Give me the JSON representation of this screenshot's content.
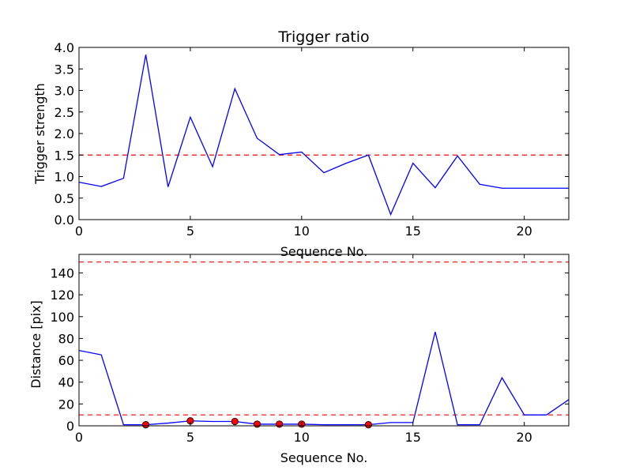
{
  "chart_data": [
    {
      "type": "line",
      "title": "Trigger ratio",
      "xlabel": "Sequence No.",
      "ylabel": "Trigger strength",
      "xlim": [
        0,
        22
      ],
      "ylim": [
        0,
        4.0
      ],
      "xticks": [
        "0",
        "5",
        "10",
        "15",
        "20"
      ],
      "yticks": [
        "0.0",
        "0.5",
        "1.0",
        "1.5",
        "2.0",
        "2.5",
        "3.0",
        "3.5",
        "4.0"
      ],
      "grid": false,
      "series": [
        {
          "color": "#0000ff",
          "x": [
            0,
            1,
            2,
            3,
            4,
            5,
            6,
            7,
            8,
            9,
            10,
            11,
            12,
            13,
            14,
            15,
            16,
            17,
            18,
            19,
            20,
            21,
            22
          ],
          "values": [
            0.87,
            0.77,
            0.96,
            3.83,
            0.76,
            2.38,
            1.23,
            3.04,
            1.89,
            1.51,
            1.57,
            1.09,
            1.31,
            1.5,
            0.12,
            1.31,
            0.74,
            1.48,
            0.82,
            0.73,
            0.73,
            0.73,
            0.73
          ]
        }
      ],
      "reference_lines": [
        {
          "y": 1.5,
          "color": "#ff0000",
          "style": "dashed"
        }
      ]
    },
    {
      "type": "line",
      "title": "",
      "xlabel": "Sequence No.",
      "ylabel": "Distance [pix]",
      "xlim": [
        0,
        22
      ],
      "ylim": [
        0,
        157
      ],
      "xticks": [
        "0",
        "5",
        "10",
        "15",
        "20"
      ],
      "yticks": [
        "0",
        "20",
        "40",
        "60",
        "80",
        "100",
        "120",
        "140"
      ],
      "grid": false,
      "series": [
        {
          "color": "#0000ff",
          "x": [
            0,
            1,
            2,
            3,
            4,
            5,
            6,
            7,
            8,
            9,
            10,
            11,
            12,
            13,
            14,
            15,
            16,
            17,
            18,
            19,
            20,
            21,
            22
          ],
          "values": [
            69,
            65,
            1,
            1,
            2.5,
            4.5,
            4,
            4,
            1.5,
            1.5,
            1.5,
            1,
            1,
            1,
            3,
            3,
            86,
            1,
            1,
            44,
            10,
            10,
            24
          ]
        }
      ],
      "markers": {
        "color": "#ff0000",
        "x": [
          3,
          5,
          7,
          8,
          9,
          10,
          13
        ],
        "values": [
          1,
          4.5,
          4,
          1.5,
          1.5,
          1.5,
          1
        ]
      },
      "reference_lines": [
        {
          "y": 150,
          "color": "#ff0000",
          "style": "dashed"
        },
        {
          "y": 10,
          "color": "#ff0000",
          "style": "dashed"
        }
      ]
    }
  ]
}
